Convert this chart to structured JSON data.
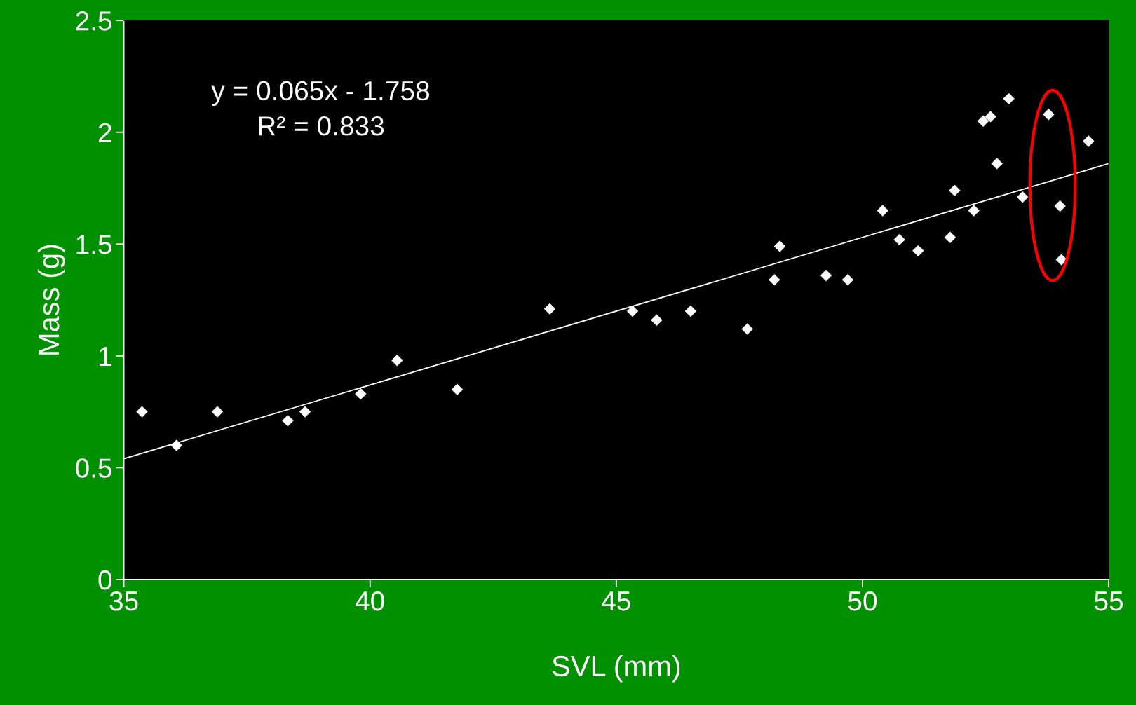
{
  "chart_data": {
    "type": "scatter",
    "xlabel": "SVL (mm)",
    "ylabel": "Mass (g)",
    "annotations": [
      "y = 0.065x - 1.758",
      "R² = 0.833"
    ],
    "xlim": [
      35,
      55
    ],
    "xticks": [
      35,
      40,
      45,
      50,
      55
    ],
    "ylim": [
      0,
      2.5
    ],
    "yticks": [
      0,
      0.5,
      1,
      1.5,
      2,
      2.5
    ],
    "grid": false,
    "legend": false,
    "marker": "diamond",
    "series": [
      {
        "color": "#ffffff",
        "x": [
          35.37,
          36.07,
          36.9,
          38.33,
          38.68,
          39.81,
          40.55,
          41.77,
          43.65,
          45.33,
          45.82,
          46.51,
          47.66,
          48.21,
          48.32,
          49.26,
          49.7,
          50.41,
          50.75,
          51.13,
          51.78,
          51.87,
          52.26,
          52.45,
          52.6,
          52.73,
          52.97,
          53.25,
          53.78,
          54.01,
          54.04,
          54.59
        ],
        "values": [
          0.75,
          0.6,
          0.75,
          0.71,
          0.75,
          0.83,
          0.98,
          0.85,
          1.21,
          1.2,
          1.16,
          1.2,
          1.12,
          1.34,
          1.49,
          1.36,
          1.34,
          1.65,
          1.52,
          1.47,
          1.53,
          1.74,
          1.65,
          2.05,
          2.07,
          1.86,
          2.15,
          1.71,
          2.08,
          1.67,
          1.43,
          1.96
        ]
      },
      {
        "type": "line",
        "marker": "none",
        "color": "#ffffff",
        "x": [
          35,
          55
        ],
        "values": [
          0.54,
          1.86
        ]
      }
    ]
  }
}
